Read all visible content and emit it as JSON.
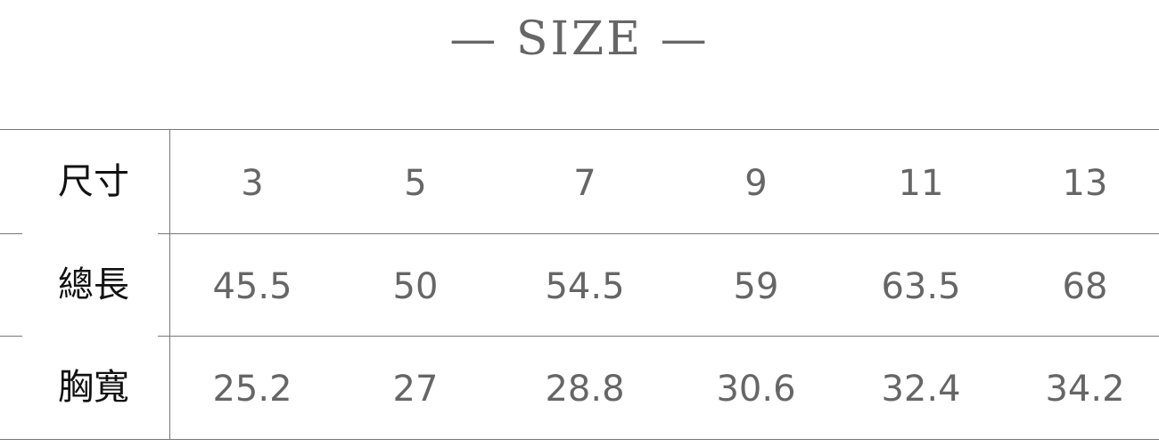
{
  "title": "— SIZE —",
  "table": {
    "rows": [
      {
        "label": "尺寸",
        "values": [
          "3",
          "5",
          "7",
          "9",
          "11",
          "13"
        ]
      },
      {
        "label": "總長",
        "values": [
          "45.5",
          "50",
          "54.5",
          "59",
          "63.5",
          "68"
        ]
      },
      {
        "label": "胸寬",
        "values": [
          "25.2",
          "27",
          "28.8",
          "30.6",
          "32.4",
          "34.2"
        ]
      }
    ]
  }
}
